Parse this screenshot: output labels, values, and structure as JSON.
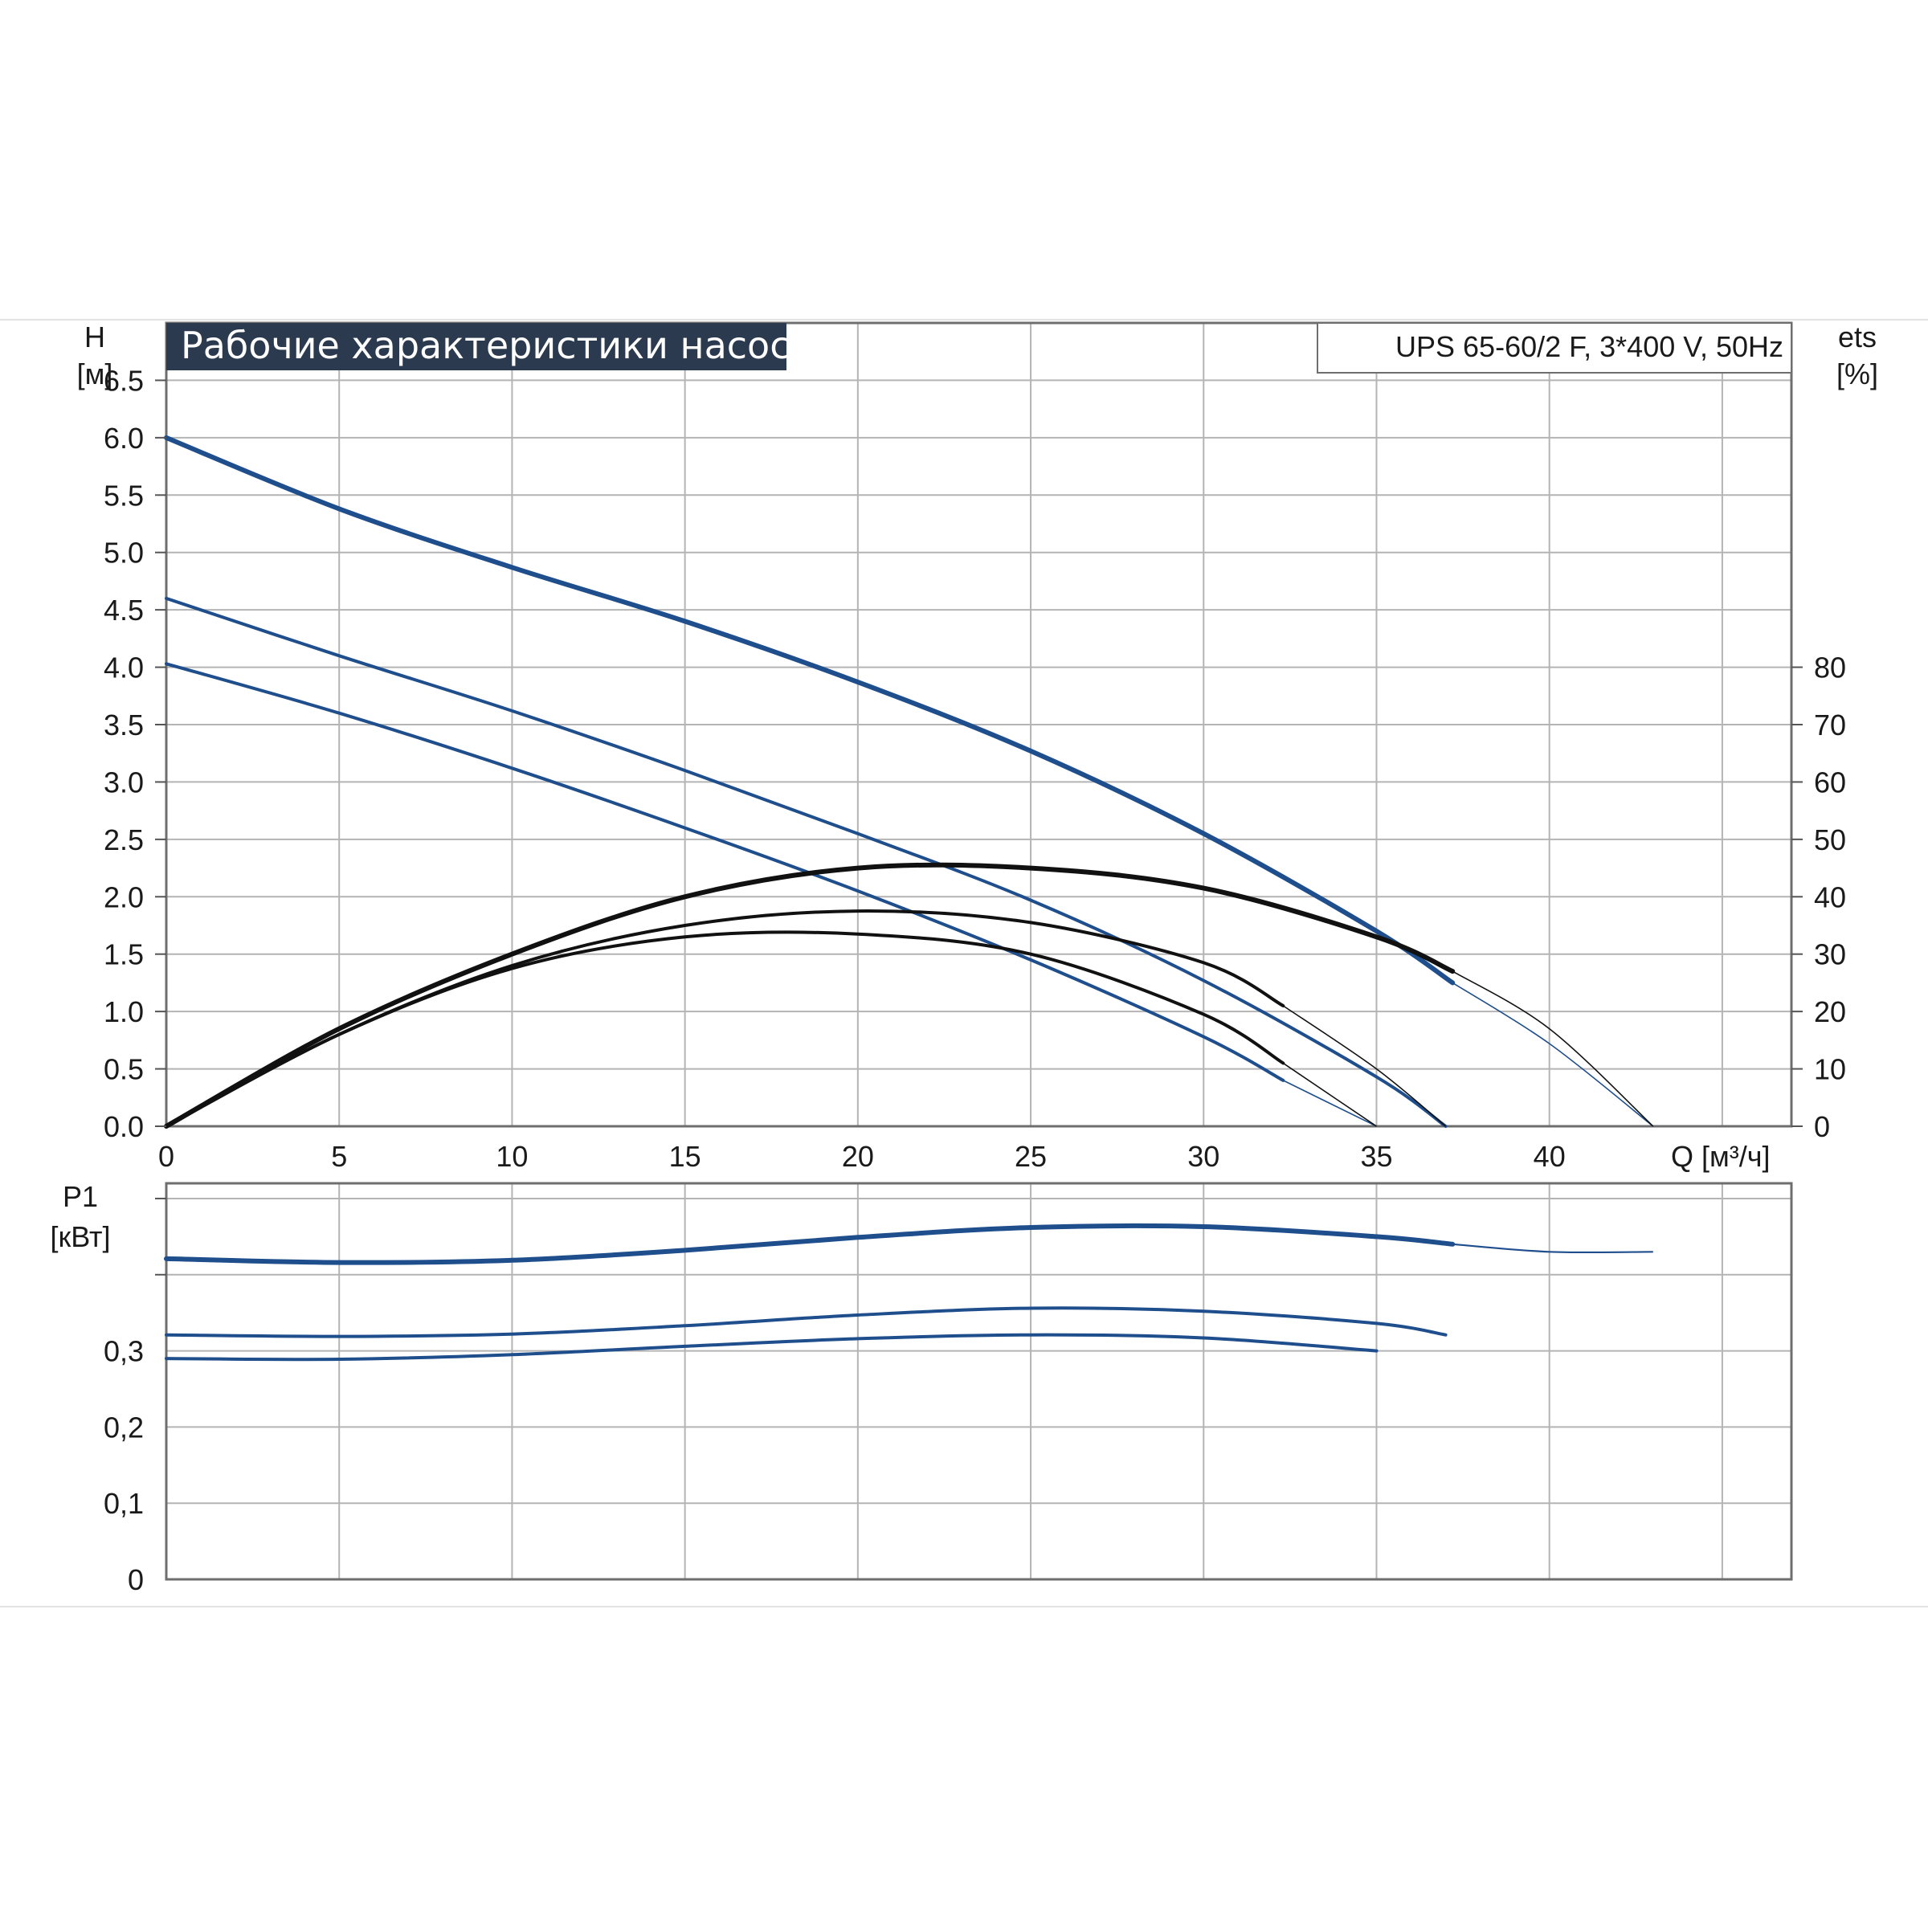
{
  "header": {
    "title": "Рабочие характеристики насоса",
    "model": "UPS 65-60/2 F, 3*400 V, 50Hz"
  },
  "colors": {
    "head_curve": "#1f4e8c",
    "efficiency_curve": "#111111",
    "power_curve": "#1f4e8c",
    "grid": "#b4b4b4",
    "title_bg": "#2b3a4e"
  },
  "chart_data": [
    {
      "type": "line",
      "title": "Рабочие характеристики насоса",
      "xlabel": "Q [м³/ч]",
      "ylabel": "H\n[м]",
      "y2label": "ets\n[%]",
      "xlim": [
        0,
        47
      ],
      "ylim": [
        0,
        7.0
      ],
      "y2lim": [
        0,
        140
      ],
      "grid": true,
      "x_ticks": [
        "0",
        "5",
        "10",
        "15",
        "20",
        "25",
        "30",
        "35",
        "40"
      ],
      "y_ticks": [
        "0.0",
        "0.5",
        "1.0",
        "1.5",
        "2.0",
        "2.5",
        "3.0",
        "3.5",
        "4.0",
        "4.5",
        "5.0",
        "5.5",
        "6.0",
        "6.5"
      ],
      "y2_ticks": [
        "0",
        "10",
        "20",
        "30",
        "40",
        "50",
        "60",
        "70",
        "80"
      ],
      "head_series": [
        {
          "x": [
            0,
            5,
            10,
            15,
            20,
            25,
            30,
            35,
            37.2
          ],
          "y": [
            6.0,
            5.38,
            4.87,
            4.4,
            3.87,
            3.27,
            2.55,
            1.7,
            1.25
          ],
          "x_ext": [
            37.2,
            40,
            43
          ],
          "y_ext": [
            1.25,
            0.72,
            0
          ]
        },
        {
          "x": [
            0,
            5,
            10,
            15,
            20,
            25,
            30,
            35,
            37
          ],
          "y": [
            4.6,
            4.1,
            3.62,
            3.1,
            2.55,
            1.97,
            1.27,
            0.43,
            0
          ],
          "x_ext": [],
          "y_ext": []
        },
        {
          "x": [
            0,
            5,
            10,
            15,
            20,
            25,
            30,
            32.3
          ],
          "y": [
            4.03,
            3.6,
            3.12,
            2.6,
            2.05,
            1.45,
            0.78,
            0.4
          ],
          "x_ext": [
            32.3,
            35
          ],
          "y_ext": [
            0.4,
            0
          ]
        }
      ],
      "efficiency_series": [
        {
          "x": [
            0,
            5,
            10,
            15,
            20,
            25,
            30,
            35,
            37.2
          ],
          "y": [
            0,
            17,
            30,
            40,
            45,
            45,
            41.5,
            33,
            27
          ],
          "x_ext": [
            37.2,
            40,
            43
          ],
          "y_ext": [
            27,
            17,
            0
          ]
        },
        {
          "x": [
            0,
            5,
            10,
            15,
            20,
            25,
            30,
            32.3
          ],
          "y": [
            0,
            16,
            28,
            35,
            37.5,
            35.5,
            28.5,
            21
          ],
          "x_ext": [
            32.3,
            35,
            37
          ],
          "y_ext": [
            21,
            10,
            0
          ]
        },
        {
          "x": [
            0,
            5,
            10,
            15,
            20,
            25,
            30,
            32.3
          ],
          "y": [
            0,
            16,
            27.5,
            33,
            33.5,
            30,
            19.5,
            11
          ],
          "x_ext": [
            32.3,
            35
          ],
          "y_ext": [
            11,
            0
          ]
        }
      ]
    },
    {
      "type": "line",
      "xlabel": "",
      "ylabel": "P1\n[кВт]",
      "xlim": [
        0,
        47
      ],
      "ylim": [
        0,
        0.52
      ],
      "grid": true,
      "y_ticks": [
        "0",
        "0,1",
        "0,2",
        "0,3"
      ],
      "series": [
        {
          "x": [
            0,
            5,
            10,
            15,
            20,
            25,
            30,
            35,
            37.2
          ],
          "y": [
            0.421,
            0.416,
            0.419,
            0.432,
            0.449,
            0.462,
            0.463,
            0.45,
            0.44
          ],
          "x_ext": [
            37.2,
            40,
            43
          ],
          "y_ext": [
            0.44,
            0.43,
            0.43
          ]
        },
        {
          "x": [
            0,
            5,
            10,
            15,
            20,
            25,
            30,
            35,
            37
          ],
          "y": [
            0.321,
            0.319,
            0.322,
            0.333,
            0.347,
            0.356,
            0.352,
            0.336,
            0.321
          ],
          "x_ext": [],
          "y_ext": []
        },
        {
          "x": [
            0,
            5,
            10,
            15,
            20,
            25,
            30,
            35
          ],
          "y": [
            0.29,
            0.289,
            0.295,
            0.306,
            0.316,
            0.321,
            0.317,
            0.3
          ],
          "x_ext": [],
          "y_ext": []
        }
      ]
    }
  ]
}
